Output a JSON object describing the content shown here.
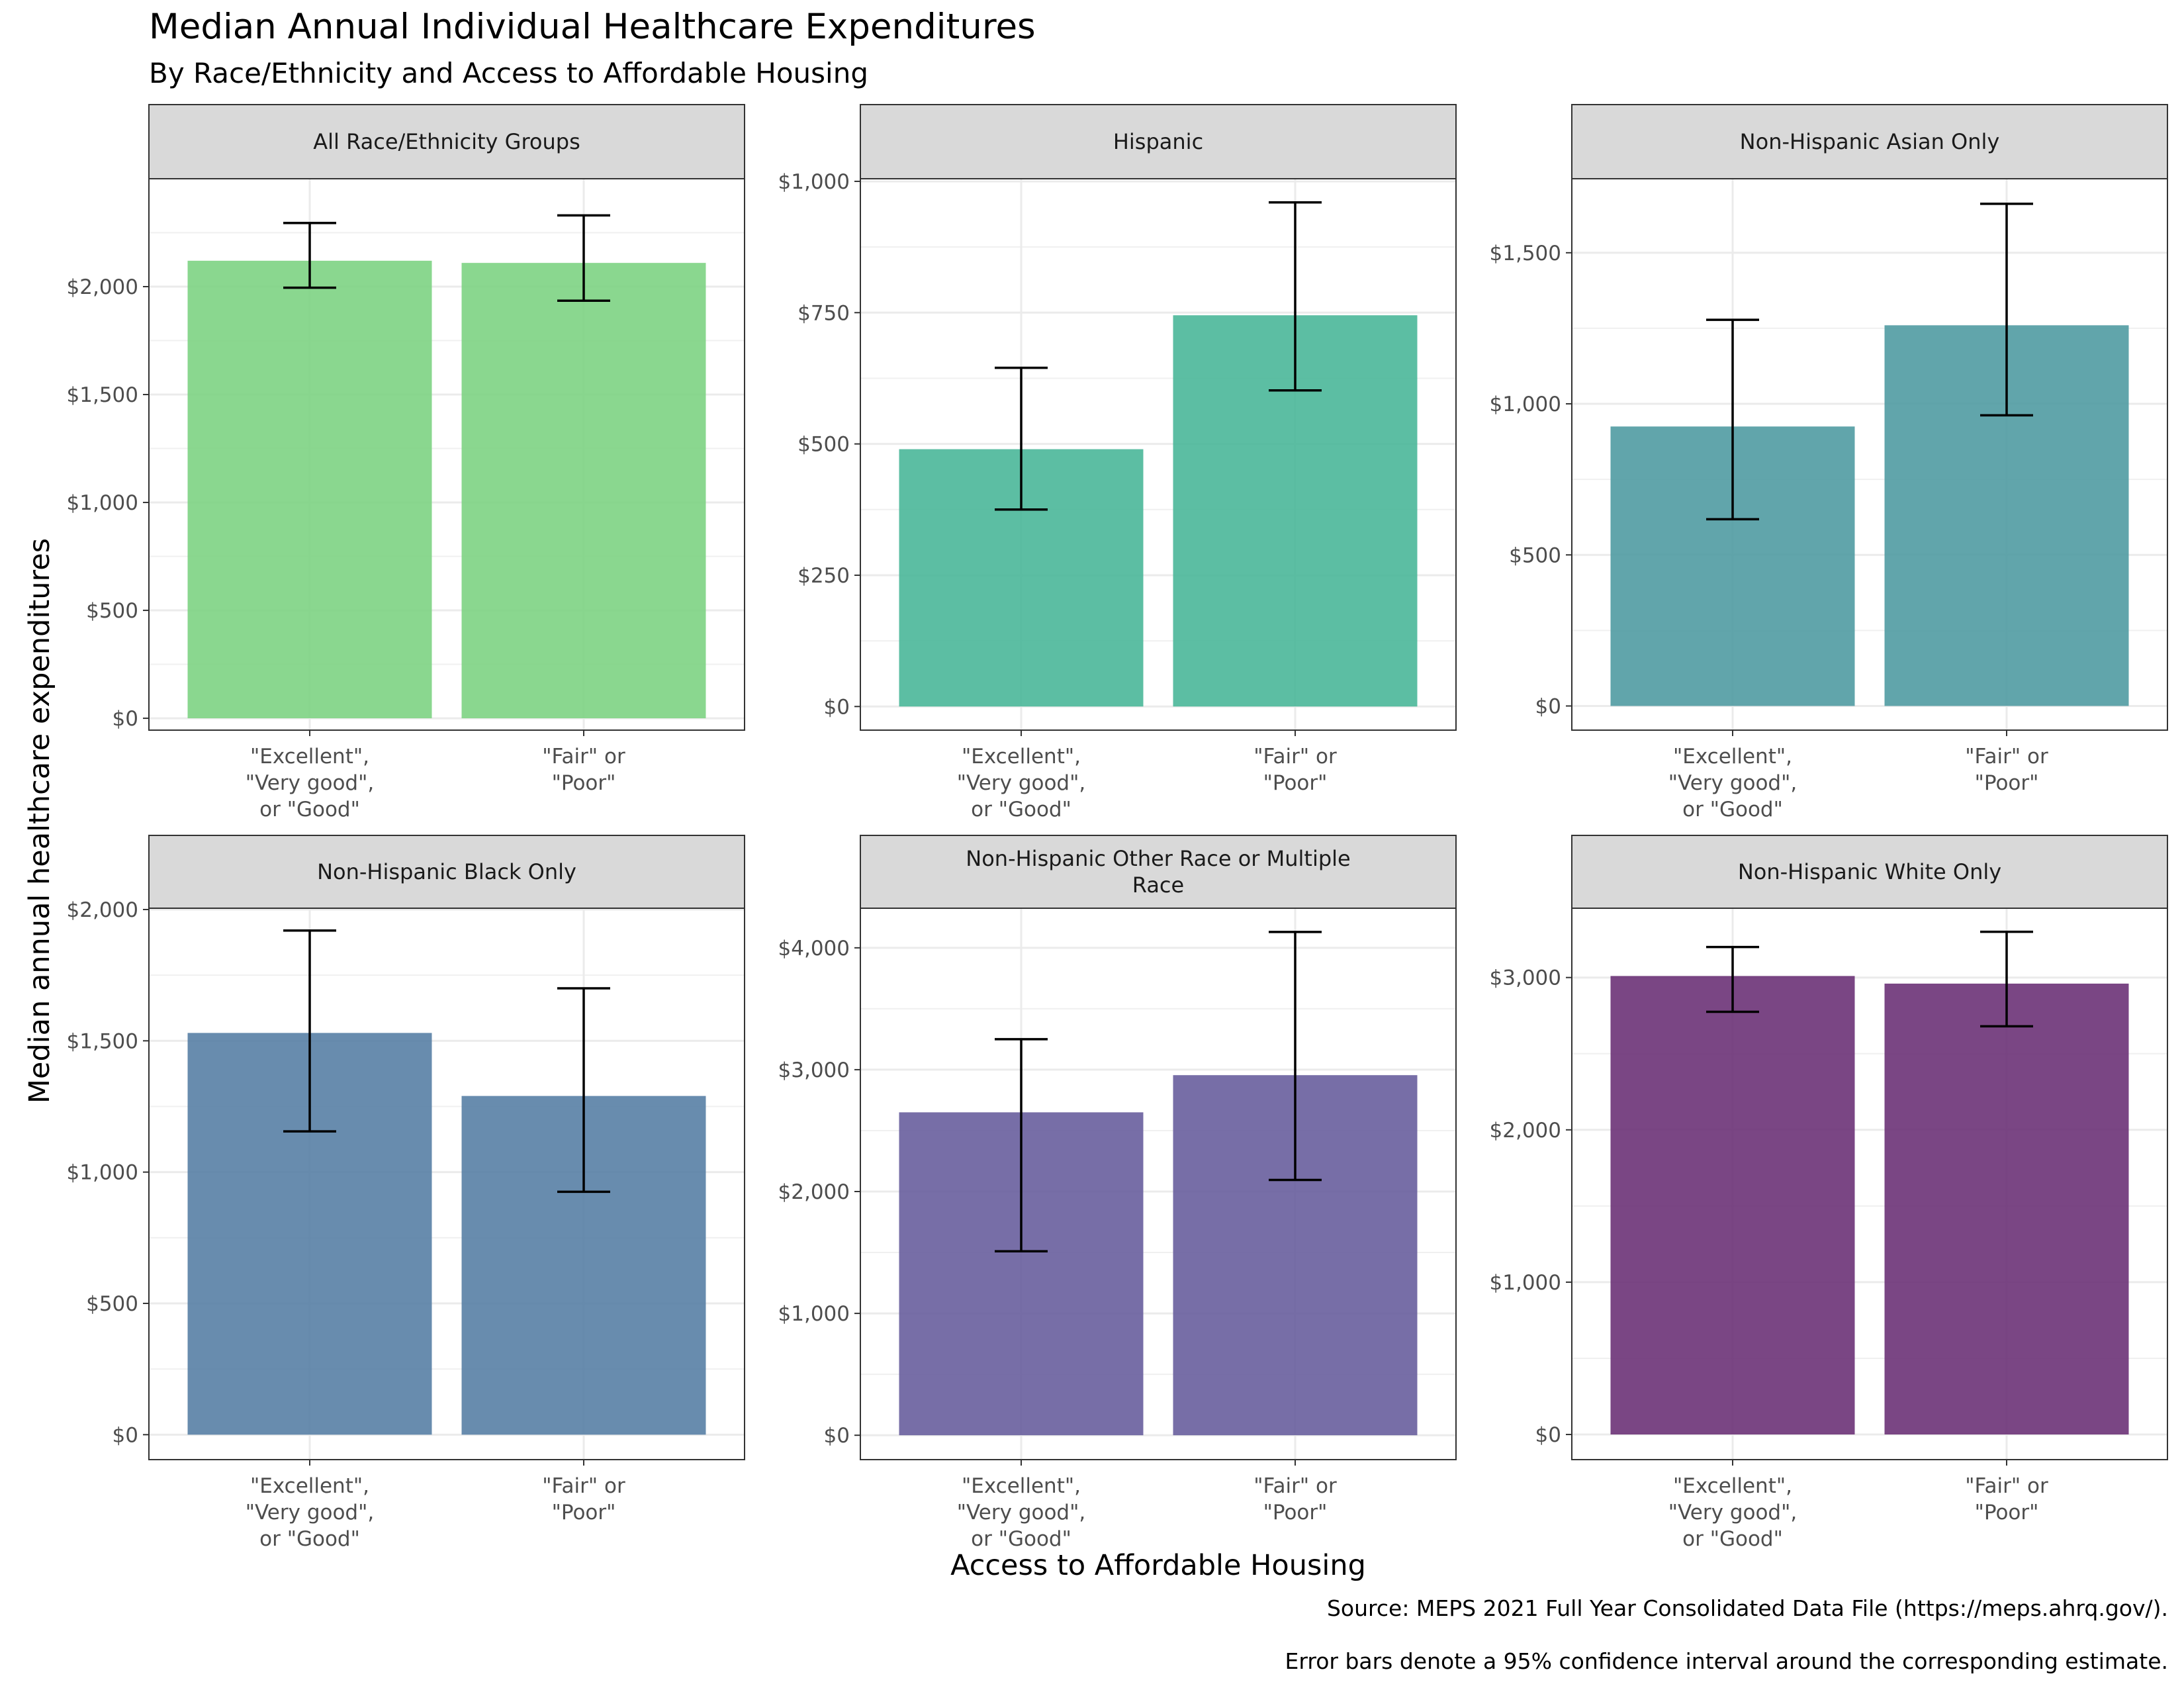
{
  "title": "Median Annual Individual Healthcare Expenditures",
  "subtitle": "By Race/Ethnicity and Access to Affordable Housing",
  "ylabel": "Median annual healthcare expenditures",
  "xlabel": "Access to Affordable Housing",
  "captions": [
    "Source: MEPS 2021 Full Year Consolidated Data File (https://meps.ahrq.gov/).",
    "Error bars denote a 95% confidence interval around the corresponding estimate."
  ],
  "chart_data": [
    {
      "type": "bar",
      "panel": "All Race/Ethnicity Groups",
      "categories": [
        "\"Excellent\",\n\"Very good\",\nor \"Good\"",
        "\"Fair\" or\n\"Poor\""
      ],
      "values": [
        2120,
        2110
      ],
      "ci_low": [
        1995,
        1935
      ],
      "ci_high": [
        2295,
        2330
      ],
      "ylim": [
        -55,
        2500
      ],
      "yticks": [
        0,
        500,
        1000,
        1500,
        2000
      ],
      "ytick_labels": [
        "$0",
        "$500",
        "$1,000",
        "$1,500",
        "$2,000"
      ],
      "color": "#7AD27F",
      "grid": true
    },
    {
      "type": "bar",
      "panel": "Hispanic",
      "categories": [
        "\"Excellent\",\n\"Very good\",\nor \"Good\"",
        "\"Fair\" or\n\"Poor\""
      ],
      "values": [
        490,
        745
      ],
      "ci_low": [
        375,
        602
      ],
      "ci_high": [
        645,
        960
      ],
      "ylim": [
        -45,
        1005
      ],
      "yticks": [
        0,
        250,
        500,
        750,
        1000
      ],
      "ytick_labels": [
        "$0",
        "$250",
        "$500",
        "$750",
        "$1,000"
      ],
      "color": "#46B596",
      "grid": true
    },
    {
      "type": "bar",
      "panel": "Non-Hispanic Asian Only",
      "categories": [
        "\"Excellent\",\n\"Very good\",\nor \"Good\"",
        "\"Fair\" or\n\"Poor\""
      ],
      "values": [
        925,
        1260
      ],
      "ci_low": [
        618,
        962
      ],
      "ci_high": [
        1278,
        1662
      ],
      "ylim": [
        -80,
        1745
      ],
      "yticks": [
        0,
        500,
        1000,
        1500
      ],
      "ytick_labels": [
        "$0",
        "$500",
        "$1,000",
        "$1,500"
      ],
      "color": "#4B989F",
      "grid": true
    },
    {
      "type": "bar",
      "panel": "Non-Hispanic Black Only",
      "categories": [
        "\"Excellent\",\n\"Very good\",\nor \"Good\"",
        "\"Fair\" or\n\"Poor\""
      ],
      "values": [
        1530,
        1290
      ],
      "ci_low": [
        1155,
        925
      ],
      "ci_high": [
        1920,
        1700
      ],
      "ylim": [
        -95,
        2005
      ],
      "yticks": [
        0,
        500,
        1000,
        1500,
        2000
      ],
      "ytick_labels": [
        "$0",
        "$500",
        "$1,000",
        "$1,500",
        "$2,000"
      ],
      "color": "#537CA3",
      "grid": true
    },
    {
      "type": "bar",
      "panel": "Non-Hispanic Other Race or Multiple\nRace",
      "categories": [
        "\"Excellent\",\n\"Very good\",\nor \"Good\"",
        "\"Fair\" or\n\"Poor\""
      ],
      "values": [
        2650,
        2955
      ],
      "ci_low": [
        1510,
        2095
      ],
      "ci_high": [
        3250,
        4130
      ],
      "ylim": [
        -200,
        4325
      ],
      "yticks": [
        0,
        1000,
        2000,
        3000,
        4000
      ],
      "ytick_labels": [
        "$0",
        "$1,000",
        "$2,000",
        "$3,000",
        "$4,000"
      ],
      "color": "#645A9B",
      "grid": true
    },
    {
      "type": "bar",
      "panel": "Non-Hispanic White Only",
      "categories": [
        "\"Excellent\",\n\"Very good\",\nor \"Good\"",
        "\"Fair\" or\n\"Poor\""
      ],
      "values": [
        3010,
        2960
      ],
      "ci_low": [
        2775,
        2680
      ],
      "ci_high": [
        3200,
        3300
      ],
      "ylim": [
        -165,
        3455
      ],
      "yticks": [
        0,
        1000,
        2000,
        3000
      ],
      "ytick_labels": [
        "$0",
        "$1,000",
        "$2,000",
        "$3,000"
      ],
      "color": "#682C73",
      "grid": true
    }
  ]
}
